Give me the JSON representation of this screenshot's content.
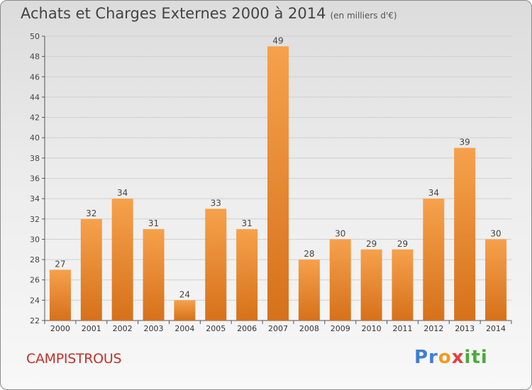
{
  "header": {
    "title": "Achats et Charges Externes 2000 à 2014",
    "subtitle": "(en milliers d'€)"
  },
  "footer": {
    "commune": "CAMPISTROUS",
    "logo_text": "Proxiti"
  },
  "colors": {
    "bar_light": "#f5a04a",
    "bar_dark": "#d9741c",
    "grid": "#d0d0d0",
    "axis": "#555555",
    "commune_text": "#c0302a"
  },
  "chart_data": {
    "type": "bar",
    "title": "Achats et Charges Externes 2000 à 2014",
    "subtitle": "(en milliers d'€)",
    "categories": [
      "2000",
      "2001",
      "2002",
      "2003",
      "2004",
      "2005",
      "2006",
      "2007",
      "2008",
      "2009",
      "2010",
      "2011",
      "2012",
      "2013",
      "2014"
    ],
    "values": [
      27,
      32,
      34,
      31,
      24,
      33,
      31,
      49,
      28,
      30,
      29,
      29,
      34,
      39,
      30
    ],
    "ylim": [
      22,
      50
    ],
    "yticks": [
      22,
      24,
      26,
      28,
      30,
      32,
      34,
      36,
      38,
      40,
      42,
      44,
      46,
      48,
      50
    ],
    "grid": true,
    "data_labels": true
  }
}
